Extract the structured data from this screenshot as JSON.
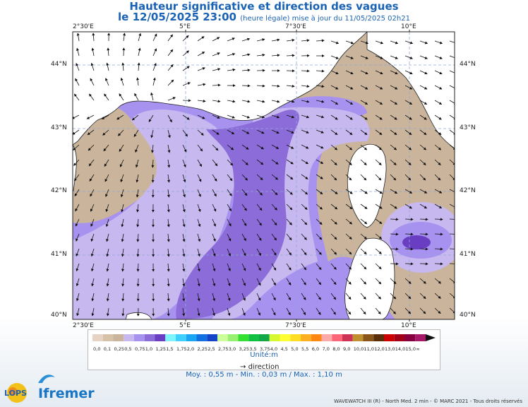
{
  "title": "Hauteur significative et direction des vagues",
  "subtitle_date": "le 12/05/2025 23:00",
  "subtitle_note": "(heure légale) mise à jour du 11/05/2025 02h21",
  "lon_labels": [
    "2°30'E",
    "5°E",
    "7°30'E",
    "10°E"
  ],
  "lat_labels": [
    "44°N",
    "43°N",
    "42°N",
    "41°N",
    "40°N"
  ],
  "legend": {
    "classes": [
      "0,0",
      "0,1",
      "0,25",
      "0,5",
      "0,75",
      "1,0",
      "1,25",
      "1,5",
      "1,75",
      "2,0",
      "2,25",
      "2,5",
      "2,75",
      "3,0",
      "3,25",
      "3,5",
      "3,75",
      "4,0",
      "4,5",
      "5,0",
      "5,5",
      "6,0",
      "7,0",
      "8,0",
      "9,0",
      "10,0",
      "11,0",
      "12,0",
      "13,0",
      "14,0",
      "15,0",
      "∞"
    ],
    "colors": [
      "#e6d3c4",
      "#d7c2a8",
      "#cab59c",
      "#c8b8f0",
      "#a892f0",
      "#8c6cd8",
      "#6a3ec2",
      "#7ef4ff",
      "#40d0ff",
      "#1aa6f2",
      "#1270e0",
      "#1644c8",
      "#ccff99",
      "#98f070",
      "#34e032",
      "#10c040",
      "#12a848",
      "#d8f830",
      "#ffff33",
      "#ffdd22",
      "#ffb020",
      "#ff8814",
      "#ffaaaa",
      "#ff6677",
      "#cc3355",
      "#c09030",
      "#8a5518",
      "#5a2e08",
      "#cc0000",
      "#a00018",
      "#880040",
      "#a8186a"
    ],
    "unit": "Unité:m",
    "direction_label": "direction"
  },
  "stats": "Moy. : 0,55 m   -   Min. : 0,03 m / Max. : 1,10 m",
  "credit": "WAVEWATCH III (R) - North Med. 2 min - © MARC 2021 - Tous droits réservés",
  "logos": {
    "lops": "LOPS",
    "ifremer": "Ifremer"
  },
  "colors": {
    "land": "#ffffff",
    "sea_low": "#cab59c",
    "sea_mid": "#c8b8f0",
    "sea_high": "#a892f0",
    "sea_max": "#8c6cd8",
    "sea_peak": "#6a3ec2",
    "title": "#1a62b3"
  }
}
